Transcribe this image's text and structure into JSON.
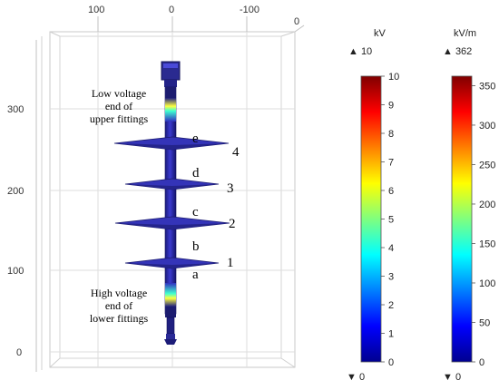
{
  "model_axes": {
    "top_ticks": [
      "100",
      "0",
      "-100"
    ],
    "top_right_tick": "0",
    "left_ticks": [
      "300",
      "200",
      "100",
      "0"
    ]
  },
  "annotations": {
    "upper_fitting": [
      "Low voltage",
      "end of",
      "upper fittings"
    ],
    "lower_fitting": [
      "High voltage",
      "end of",
      "lower fittings"
    ]
  },
  "shed_labels": [
    "4",
    "3",
    "2",
    "1"
  ],
  "gap_labels": [
    "e",
    "d",
    "c",
    "b",
    "a"
  ],
  "colorbars": [
    {
      "unit": "kV",
      "max_marker": "▲ 10",
      "min_marker": "▼ 0",
      "ticks": [
        "10",
        "9",
        "8",
        "7",
        "6",
        "5",
        "4",
        "3",
        "2",
        "1",
        "0"
      ]
    },
    {
      "unit": "kV/m",
      "max_marker": "▲ 362",
      "min_marker": "▼ 0",
      "ticks": [
        "350",
        "300",
        "250",
        "200",
        "150",
        "100",
        "50",
        "0"
      ]
    }
  ]
}
